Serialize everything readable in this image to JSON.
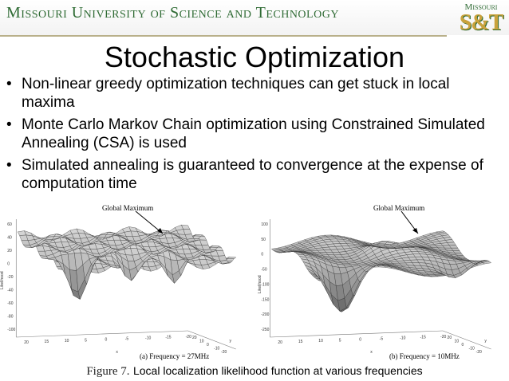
{
  "header": {
    "university": "Missouri University of Science and Technology",
    "logo_top": "Missouri",
    "logo_mark": "S&T"
  },
  "slide": {
    "title": "Stochastic Optimization",
    "bullets": [
      {
        "marker": "•",
        "text": "Non-linear greedy optimization techniques can get stuck in local maxima"
      },
      {
        "marker": "•",
        "text": "Monte Carlo Markov Chain optimization using Constrained Simulated Annealing (CSA) is used"
      },
      {
        "marker": "•",
        "text": "Simulated annealing is guaranteed to convergence at the expense of computation time"
      }
    ]
  },
  "figure": {
    "caption_prefix": "Figure 7.",
    "caption_text": "Local localization likelihood function at various frequencies",
    "plots": [
      {
        "subcaption": "(a) Frequency = 27MHz",
        "annotation": "Global Maximum",
        "zlabel": "Likelihood",
        "z_ticks": [
          "60",
          "40",
          "20",
          "0",
          "-20",
          "-40",
          "-60",
          "-80",
          "-100"
        ],
        "x_ticks": [
          "20",
          "15",
          "10",
          "5",
          "0",
          "-5",
          "-10",
          "-15",
          "-20"
        ],
        "y_ticks": [
          "20",
          "10",
          "0",
          "-10",
          "-20"
        ],
        "axis_x": "x",
        "axis_y": "y"
      },
      {
        "subcaption": "(b) Frequency = 10MHz",
        "annotation": "Global Maximum",
        "zlabel": "Likelihood",
        "z_ticks": [
          "100",
          "50",
          "0",
          "-50",
          "-100",
          "-150",
          "-200",
          "-250"
        ],
        "x_ticks": [
          "20",
          "15",
          "10",
          "5",
          "0",
          "-5",
          "-10",
          "-15",
          "-20"
        ],
        "y_ticks": [
          "20",
          "10",
          "0",
          "-10",
          "-20"
        ],
        "axis_x": "x",
        "axis_y": "y"
      }
    ]
  }
}
